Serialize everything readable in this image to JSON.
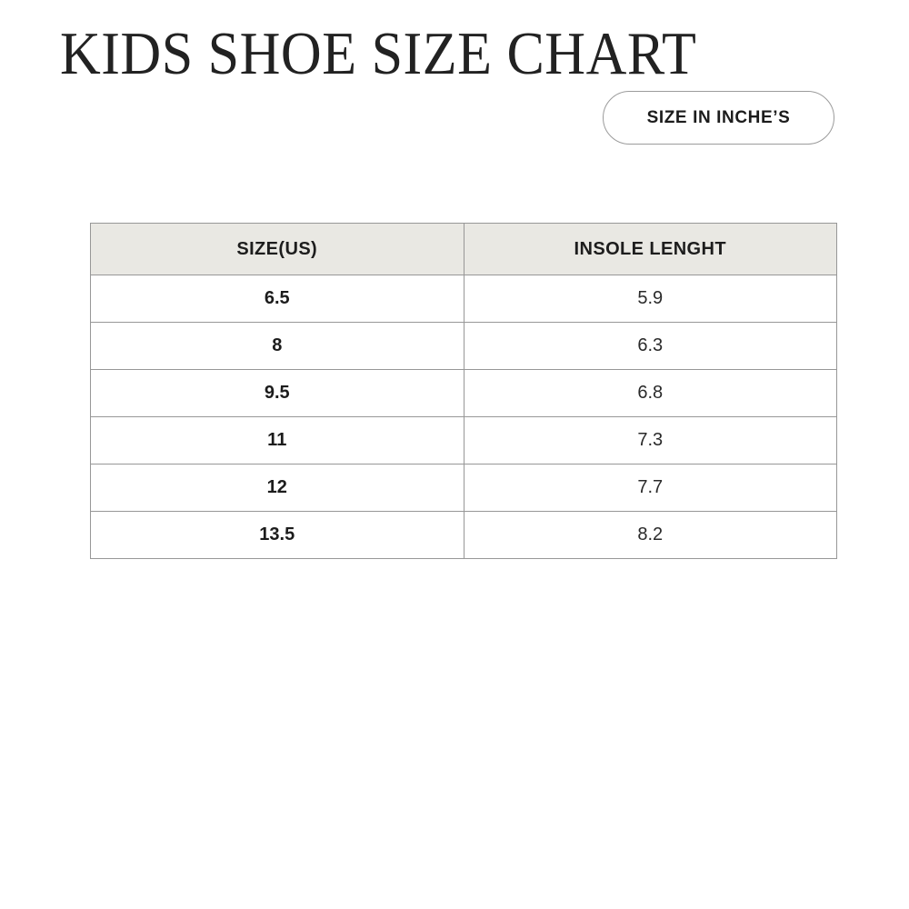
{
  "header": {
    "title": "KIDS SHOE SIZE CHART",
    "unit_badge_label": "SIZE IN INCHE’S"
  },
  "chart_data": {
    "type": "table",
    "title": "KIDS SHOE SIZE CHART",
    "unit_label": "SIZE IN INCHE’S",
    "columns": [
      "SIZE(US)",
      "INSOLE LENGHT"
    ],
    "rows": [
      {
        "size_us": "6.5",
        "insole_length": "5.9"
      },
      {
        "size_us": "8",
        "insole_length": "6.3"
      },
      {
        "size_us": "9.5",
        "insole_length": "6.8"
      },
      {
        "size_us": "11",
        "insole_length": "7.3"
      },
      {
        "size_us": "12",
        "insole_length": "7.7"
      },
      {
        "size_us": "13.5",
        "insole_length": "8.2"
      }
    ]
  },
  "colors": {
    "background": "#ffffff",
    "title_text": "#222222",
    "table_border": "#979797",
    "header_row_background": "#e9e8e3",
    "pill_border": "#9b9b9b",
    "cell_text": "#222222"
  }
}
